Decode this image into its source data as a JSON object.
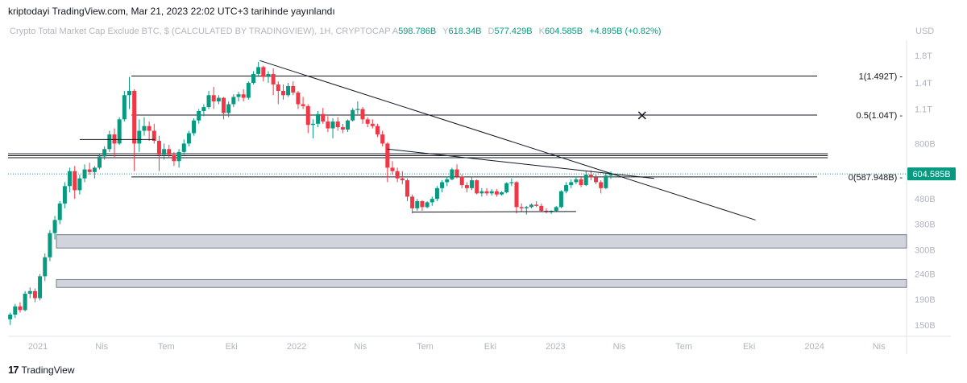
{
  "published_by": "kriptodayi TradingView.com, Mar 21, 2023 22:02 UTC+3 tarihinde yayınlandı",
  "header": {
    "symbol": "Crypto Total Market Cap Exclude BTC, $ (CALCULATED BY TRADINGVIEW), 1H, CRYPTOCAP",
    "ohlc": [
      {
        "key": "A",
        "value": "598.786B"
      },
      {
        "key": "Y",
        "value": "618.34B"
      },
      {
        "key": "D",
        "value": "577.429B"
      },
      {
        "key": "K",
        "value": "604.585B"
      }
    ],
    "change": "+4.895B (+0.82%)",
    "currency": "USD"
  },
  "colors": {
    "up": "#089981",
    "down": "#f23645",
    "line": "#131722",
    "zone_fill": "#d1d4dc",
    "zone_stroke": "#787b86",
    "price_label_bg": "#089981",
    "axis_text": "#b2b5be",
    "text": "#131722"
  },
  "chart_data": {
    "type": "candlestick",
    "scale": "log",
    "x_range": [
      "2020-11-20",
      "2024-05-10"
    ],
    "y_range": [
      135,
      2000
    ],
    "x_ticks": [
      {
        "label": "2021",
        "date": "2021-01-01"
      },
      {
        "label": "Nis",
        "date": "2021-04-01"
      },
      {
        "label": "Tem",
        "date": "2021-07-01"
      },
      {
        "label": "Eki",
        "date": "2021-10-01"
      },
      {
        "label": "2022",
        "date": "2022-01-01"
      },
      {
        "label": "Nis",
        "date": "2022-04-01"
      },
      {
        "label": "Tem",
        "date": "2022-07-01"
      },
      {
        "label": "Eki",
        "date": "2022-10-01"
      },
      {
        "label": "2023",
        "date": "2023-01-01"
      },
      {
        "label": "Nis",
        "date": "2023-04-01"
      },
      {
        "label": "Tem",
        "date": "2023-07-01"
      },
      {
        "label": "Eki",
        "date": "2023-10-01"
      },
      {
        "label": "2024",
        "date": "2024-01-01"
      },
      {
        "label": "Nis",
        "date": "2024-04-01"
      }
    ],
    "y_ticks": [
      {
        "label": "1.8T",
        "value": 1800
      },
      {
        "label": "1.4T",
        "value": 1400
      },
      {
        "label": "1.1T",
        "value": 1100
      },
      {
        "label": "800B",
        "value": 800
      },
      {
        "label": "480B",
        "value": 480
      },
      {
        "label": "380B",
        "value": 380
      },
      {
        "label": "300B",
        "value": 300
      },
      {
        "label": "240B",
        "value": 240
      },
      {
        "label": "190B",
        "value": 190
      },
      {
        "label": "150B",
        "value": 150
      }
    ],
    "last_price": {
      "label": "604.585B",
      "value": 604.585
    },
    "candles": [
      {
        "date": "2020-11-23",
        "o": 158,
        "h": 168,
        "l": 150,
        "c": 165
      },
      {
        "date": "2020-11-30",
        "o": 165,
        "h": 182,
        "l": 160,
        "c": 178
      },
      {
        "date": "2020-12-07",
        "o": 178,
        "h": 185,
        "l": 168,
        "c": 172
      },
      {
        "date": "2020-12-14",
        "o": 172,
        "h": 205,
        "l": 170,
        "c": 200
      },
      {
        "date": "2020-12-21",
        "o": 200,
        "h": 212,
        "l": 192,
        "c": 205
      },
      {
        "date": "2020-12-28",
        "o": 205,
        "h": 210,
        "l": 185,
        "c": 192
      },
      {
        "date": "2021-01-04",
        "o": 192,
        "h": 240,
        "l": 188,
        "c": 235
      },
      {
        "date": "2021-01-11",
        "o": 235,
        "h": 290,
        "l": 225,
        "c": 280
      },
      {
        "date": "2021-01-18",
        "o": 280,
        "h": 360,
        "l": 270,
        "c": 350
      },
      {
        "date": "2021-01-25",
        "o": 350,
        "h": 410,
        "l": 330,
        "c": 395
      },
      {
        "date": "2021-02-01",
        "o": 395,
        "h": 470,
        "l": 380,
        "c": 460
      },
      {
        "date": "2021-02-08",
        "o": 460,
        "h": 560,
        "l": 440,
        "c": 540
      },
      {
        "date": "2021-02-15",
        "o": 540,
        "h": 640,
        "l": 510,
        "c": 620
      },
      {
        "date": "2021-02-22",
        "o": 620,
        "h": 650,
        "l": 480,
        "c": 520
      },
      {
        "date": "2021-03-01",
        "o": 520,
        "h": 600,
        "l": 500,
        "c": 580
      },
      {
        "date": "2021-03-08",
        "o": 580,
        "h": 660,
        "l": 560,
        "c": 630
      },
      {
        "date": "2021-03-15",
        "o": 630,
        "h": 670,
        "l": 600,
        "c": 615
      },
      {
        "date": "2021-03-22",
        "o": 615,
        "h": 650,
        "l": 580,
        "c": 640
      },
      {
        "date": "2021-03-29",
        "o": 640,
        "h": 730,
        "l": 630,
        "c": 710
      },
      {
        "date": "2021-04-05",
        "o": 710,
        "h": 780,
        "l": 690,
        "c": 760
      },
      {
        "date": "2021-04-12",
        "o": 760,
        "h": 900,
        "l": 740,
        "c": 870
      },
      {
        "date": "2021-04-19",
        "o": 870,
        "h": 920,
        "l": 700,
        "c": 800
      },
      {
        "date": "2021-04-26",
        "o": 800,
        "h": 1020,
        "l": 790,
        "c": 1000
      },
      {
        "date": "2021-05-03",
        "o": 1000,
        "h": 1300,
        "l": 980,
        "c": 1250
      },
      {
        "date": "2021-05-10",
        "o": 1250,
        "h": 1480,
        "l": 1100,
        "c": 1300
      },
      {
        "date": "2021-05-17",
        "o": 1300,
        "h": 1320,
        "l": 620,
        "c": 800
      },
      {
        "date": "2021-05-24",
        "o": 800,
        "h": 1000,
        "l": 740,
        "c": 900
      },
      {
        "date": "2021-05-31",
        "o": 900,
        "h": 1020,
        "l": 860,
        "c": 940
      },
      {
        "date": "2021-06-07",
        "o": 940,
        "h": 980,
        "l": 820,
        "c": 900
      },
      {
        "date": "2021-06-14",
        "o": 900,
        "h": 960,
        "l": 800,
        "c": 820
      },
      {
        "date": "2021-06-21",
        "o": 820,
        "h": 860,
        "l": 620,
        "c": 720
      },
      {
        "date": "2021-06-28",
        "o": 720,
        "h": 800,
        "l": 690,
        "c": 760
      },
      {
        "date": "2021-07-05",
        "o": 760,
        "h": 790,
        "l": 700,
        "c": 720
      },
      {
        "date": "2021-07-12",
        "o": 720,
        "h": 740,
        "l": 650,
        "c": 680
      },
      {
        "date": "2021-07-19",
        "o": 680,
        "h": 760,
        "l": 640,
        "c": 740
      },
      {
        "date": "2021-07-26",
        "o": 740,
        "h": 830,
        "l": 720,
        "c": 800
      },
      {
        "date": "2021-08-02",
        "o": 800,
        "h": 900,
        "l": 780,
        "c": 880
      },
      {
        "date": "2021-08-09",
        "o": 880,
        "h": 1010,
        "l": 860,
        "c": 990
      },
      {
        "date": "2021-08-16",
        "o": 990,
        "h": 1100,
        "l": 960,
        "c": 1080
      },
      {
        "date": "2021-08-23",
        "o": 1080,
        "h": 1150,
        "l": 1030,
        "c": 1120
      },
      {
        "date": "2021-08-30",
        "o": 1120,
        "h": 1300,
        "l": 1100,
        "c": 1250
      },
      {
        "date": "2021-09-06",
        "o": 1250,
        "h": 1350,
        "l": 1100,
        "c": 1180
      },
      {
        "date": "2021-09-13",
        "o": 1180,
        "h": 1250,
        "l": 1150,
        "c": 1220
      },
      {
        "date": "2021-09-20",
        "o": 1220,
        "h": 1230,
        "l": 1000,
        "c": 1060
      },
      {
        "date": "2021-09-27",
        "o": 1060,
        "h": 1180,
        "l": 1020,
        "c": 1150
      },
      {
        "date": "2021-10-04",
        "o": 1150,
        "h": 1260,
        "l": 1120,
        "c": 1230
      },
      {
        "date": "2021-10-11",
        "o": 1230,
        "h": 1290,
        "l": 1180,
        "c": 1260
      },
      {
        "date": "2021-10-18",
        "o": 1260,
        "h": 1320,
        "l": 1180,
        "c": 1220
      },
      {
        "date": "2021-10-25",
        "o": 1220,
        "h": 1420,
        "l": 1200,
        "c": 1400
      },
      {
        "date": "2021-11-01",
        "o": 1400,
        "h": 1560,
        "l": 1380,
        "c": 1520
      },
      {
        "date": "2021-11-08",
        "o": 1520,
        "h": 1700,
        "l": 1480,
        "c": 1620
      },
      {
        "date": "2021-11-15",
        "o": 1620,
        "h": 1640,
        "l": 1420,
        "c": 1480
      },
      {
        "date": "2021-11-22",
        "o": 1480,
        "h": 1560,
        "l": 1400,
        "c": 1520
      },
      {
        "date": "2021-11-29",
        "o": 1520,
        "h": 1600,
        "l": 1250,
        "c": 1380
      },
      {
        "date": "2021-12-06",
        "o": 1380,
        "h": 1420,
        "l": 1150,
        "c": 1300
      },
      {
        "date": "2021-12-13",
        "o": 1300,
        "h": 1380,
        "l": 1200,
        "c": 1250
      },
      {
        "date": "2021-12-20",
        "o": 1250,
        "h": 1400,
        "l": 1230,
        "c": 1360
      },
      {
        "date": "2021-12-27",
        "o": 1360,
        "h": 1420,
        "l": 1250,
        "c": 1280
      },
      {
        "date": "2022-01-03",
        "o": 1280,
        "h": 1300,
        "l": 1100,
        "c": 1150
      },
      {
        "date": "2022-01-10",
        "o": 1150,
        "h": 1230,
        "l": 1100,
        "c": 1130
      },
      {
        "date": "2022-01-17",
        "o": 1130,
        "h": 1150,
        "l": 880,
        "c": 950
      },
      {
        "date": "2022-01-24",
        "o": 950,
        "h": 1000,
        "l": 840,
        "c": 960
      },
      {
        "date": "2022-01-31",
        "o": 960,
        "h": 1080,
        "l": 930,
        "c": 1050
      },
      {
        "date": "2022-02-07",
        "o": 1050,
        "h": 1110,
        "l": 960,
        "c": 980
      },
      {
        "date": "2022-02-14",
        "o": 980,
        "h": 1030,
        "l": 890,
        "c": 920
      },
      {
        "date": "2022-02-21",
        "o": 920,
        "h": 1010,
        "l": 840,
        "c": 980
      },
      {
        "date": "2022-02-28",
        "o": 980,
        "h": 1020,
        "l": 900,
        "c": 930
      },
      {
        "date": "2022-03-07",
        "o": 930,
        "h": 960,
        "l": 880,
        "c": 910
      },
      {
        "date": "2022-03-14",
        "o": 910,
        "h": 1000,
        "l": 890,
        "c": 990
      },
      {
        "date": "2022-03-21",
        "o": 990,
        "h": 1110,
        "l": 980,
        "c": 1090
      },
      {
        "date": "2022-03-28",
        "o": 1090,
        "h": 1180,
        "l": 1050,
        "c": 1100
      },
      {
        "date": "2022-04-04",
        "o": 1100,
        "h": 1120,
        "l": 960,
        "c": 1000
      },
      {
        "date": "2022-04-11",
        "o": 1000,
        "h": 1020,
        "l": 930,
        "c": 960
      },
      {
        "date": "2022-04-18",
        "o": 960,
        "h": 1000,
        "l": 920,
        "c": 940
      },
      {
        "date": "2022-04-25",
        "o": 940,
        "h": 960,
        "l": 850,
        "c": 870
      },
      {
        "date": "2022-05-02",
        "o": 870,
        "h": 900,
        "l": 780,
        "c": 800
      },
      {
        "date": "2022-05-09",
        "o": 800,
        "h": 810,
        "l": 560,
        "c": 640
      },
      {
        "date": "2022-05-16",
        "o": 640,
        "h": 680,
        "l": 600,
        "c": 620
      },
      {
        "date": "2022-05-23",
        "o": 620,
        "h": 640,
        "l": 560,
        "c": 580
      },
      {
        "date": "2022-05-30",
        "o": 580,
        "h": 620,
        "l": 550,
        "c": 570
      },
      {
        "date": "2022-06-06",
        "o": 570,
        "h": 580,
        "l": 470,
        "c": 490
      },
      {
        "date": "2022-06-13",
        "o": 490,
        "h": 500,
        "l": 420,
        "c": 440
      },
      {
        "date": "2022-06-20",
        "o": 440,
        "h": 480,
        "l": 430,
        "c": 470
      },
      {
        "date": "2022-06-27",
        "o": 470,
        "h": 475,
        "l": 430,
        "c": 445
      },
      {
        "date": "2022-07-04",
        "o": 445,
        "h": 470,
        "l": 440,
        "c": 465
      },
      {
        "date": "2022-07-11",
        "o": 465,
        "h": 490,
        "l": 450,
        "c": 480
      },
      {
        "date": "2022-07-18",
        "o": 480,
        "h": 540,
        "l": 470,
        "c": 530
      },
      {
        "date": "2022-07-25",
        "o": 530,
        "h": 570,
        "l": 510,
        "c": 560
      },
      {
        "date": "2022-08-01",
        "o": 560,
        "h": 590,
        "l": 540,
        "c": 575
      },
      {
        "date": "2022-08-08",
        "o": 575,
        "h": 640,
        "l": 570,
        "c": 630
      },
      {
        "date": "2022-08-15",
        "o": 630,
        "h": 660,
        "l": 580,
        "c": 590
      },
      {
        "date": "2022-08-22",
        "o": 590,
        "h": 600,
        "l": 530,
        "c": 545
      },
      {
        "date": "2022-08-29",
        "o": 545,
        "h": 560,
        "l": 510,
        "c": 530
      },
      {
        "date": "2022-09-05",
        "o": 530,
        "h": 590,
        "l": 520,
        "c": 570
      },
      {
        "date": "2022-09-12",
        "o": 570,
        "h": 575,
        "l": 500,
        "c": 505
      },
      {
        "date": "2022-09-19",
        "o": 505,
        "h": 530,
        "l": 490,
        "c": 515
      },
      {
        "date": "2022-09-26",
        "o": 515,
        "h": 530,
        "l": 495,
        "c": 505
      },
      {
        "date": "2022-10-03",
        "o": 505,
        "h": 525,
        "l": 495,
        "c": 515
      },
      {
        "date": "2022-10-10",
        "o": 515,
        "h": 525,
        "l": 490,
        "c": 500
      },
      {
        "date": "2022-10-17",
        "o": 500,
        "h": 515,
        "l": 495,
        "c": 510
      },
      {
        "date": "2022-10-24",
        "o": 510,
        "h": 560,
        "l": 505,
        "c": 555
      },
      {
        "date": "2022-10-31",
        "o": 555,
        "h": 580,
        "l": 540,
        "c": 560
      },
      {
        "date": "2022-11-07",
        "o": 560,
        "h": 565,
        "l": 420,
        "c": 445
      },
      {
        "date": "2022-11-14",
        "o": 445,
        "h": 460,
        "l": 425,
        "c": 440
      },
      {
        "date": "2022-11-21",
        "o": 440,
        "h": 450,
        "l": 415,
        "c": 445
      },
      {
        "date": "2022-11-28",
        "o": 445,
        "h": 460,
        "l": 440,
        "c": 455
      },
      {
        "date": "2022-12-05",
        "o": 455,
        "h": 470,
        "l": 445,
        "c": 450
      },
      {
        "date": "2022-12-12",
        "o": 450,
        "h": 460,
        "l": 425,
        "c": 430
      },
      {
        "date": "2022-12-19",
        "o": 430,
        "h": 440,
        "l": 420,
        "c": 425
      },
      {
        "date": "2022-12-26",
        "o": 425,
        "h": 432,
        "l": 418,
        "c": 430
      },
      {
        "date": "2023-01-02",
        "o": 430,
        "h": 450,
        "l": 425,
        "c": 445
      },
      {
        "date": "2023-01-09",
        "o": 445,
        "h": 520,
        "l": 440,
        "c": 515
      },
      {
        "date": "2023-01-16",
        "o": 515,
        "h": 560,
        "l": 505,
        "c": 545
      },
      {
        "date": "2023-01-23",
        "o": 545,
        "h": 575,
        "l": 530,
        "c": 560
      },
      {
        "date": "2023-01-30",
        "o": 560,
        "h": 590,
        "l": 550,
        "c": 575
      },
      {
        "date": "2023-02-06",
        "o": 575,
        "h": 585,
        "l": 535,
        "c": 545
      },
      {
        "date": "2023-02-13",
        "o": 545,
        "h": 620,
        "l": 540,
        "c": 600
      },
      {
        "date": "2023-02-20",
        "o": 600,
        "h": 625,
        "l": 570,
        "c": 585
      },
      {
        "date": "2023-02-27",
        "o": 585,
        "h": 600,
        "l": 550,
        "c": 560
      },
      {
        "date": "2023-03-06",
        "o": 560,
        "h": 570,
        "l": 505,
        "c": 530
      },
      {
        "date": "2023-03-13",
        "o": 530,
        "h": 610,
        "l": 525,
        "c": 595
      },
      {
        "date": "2023-03-20",
        "o": 595,
        "h": 618,
        "l": 577,
        "c": 604.585
      }
    ],
    "zones": [
      {
        "from": 305,
        "to": 345
      },
      {
        "from": 212,
        "to": 228
      }
    ],
    "horizontal_lines": [
      {
        "value": 728,
        "from": "2020-11-20",
        "to": "2024-01-20"
      },
      {
        "value": 715,
        "from": "2020-11-20",
        "to": "2024-01-20"
      },
      {
        "value": 702,
        "from": "2020-11-20",
        "to": "2024-01-20"
      }
    ],
    "fib_levels": [
      {
        "ratio": 1,
        "label": "1(1.492T)",
        "value": 1492,
        "from": "2021-05-13"
      },
      {
        "ratio": 0.5,
        "label": "0.5(1.04T)",
        "value": 1040,
        "from": "2021-05-13"
      },
      {
        "ratio": 0,
        "label": "0(587.948B)",
        "value": 587.948,
        "from": "2021-05-13"
      }
    ],
    "fib_end": "2024-01-05",
    "trendlines": [
      {
        "from": [
          "2021-11-10",
          1720
        ],
        "to": [
          "2023-10-10",
          395
        ]
      },
      {
        "from": [
          "2022-05-09",
          760
        ],
        "to": [
          "2023-05-20",
          580
        ]
      },
      {
        "from": [
          "2022-06-13",
          425
        ],
        "to": [
          "2023-01-30",
          427
        ]
      },
      {
        "from": [
          "2021-03-01",
          830
        ],
        "to": [
          "2021-06-15",
          830
        ]
      }
    ],
    "marker": {
      "date": "2023-05-03",
      "value": 1040,
      "symbol": "×"
    }
  }
}
